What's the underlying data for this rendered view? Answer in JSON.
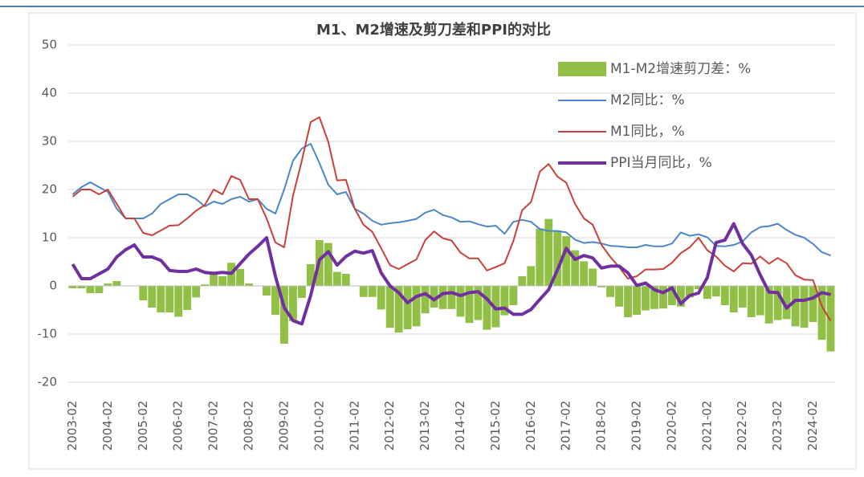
{
  "chart_data": {
    "type": "combo",
    "title": "M1、M2增速及剪刀差和PPI的对比",
    "categories": [
      "2003-02",
      null,
      null,
      null,
      "2004-02",
      null,
      null,
      null,
      "2005-02",
      null,
      null,
      null,
      "2006-02",
      null,
      null,
      null,
      "2007-02",
      null,
      null,
      null,
      "2008-02",
      null,
      null,
      null,
      "2009-02",
      null,
      null,
      null,
      "2010-02",
      null,
      null,
      null,
      "2011-02",
      null,
      null,
      null,
      "2012-02",
      null,
      null,
      null,
      "2013-02",
      null,
      null,
      null,
      "2014-02",
      null,
      null,
      null,
      "2015-02",
      null,
      null,
      null,
      "2016-02",
      null,
      null,
      null,
      "2017-02",
      null,
      null,
      null,
      "2018-02",
      null,
      null,
      null,
      "2019-02",
      null,
      null,
      null,
      "2020-02",
      null,
      null,
      null,
      "2021-02",
      null,
      null,
      null,
      "2022-02",
      null,
      null,
      null,
      "2023-02",
      null,
      null,
      null,
      "2024-02",
      null,
      null
    ],
    "ylim": [
      -20,
      50
    ],
    "yticks": [
      -20,
      -10,
      0,
      10,
      20,
      30,
      40,
      50
    ],
    "grid": true,
    "series": [
      {
        "name": "M1-M2增速剪刀差：%",
        "type": "bar",
        "color": "#92c047",
        "values": [
          -0.5,
          -0.5,
          -1.5,
          -1.5,
          0.5,
          1,
          0,
          0,
          -3,
          -4.5,
          -5.5,
          -5.5,
          -6.4,
          -5,
          -2.4,
          0.3,
          2.5,
          2,
          4.8,
          3.5,
          0.5,
          0,
          -2,
          -6,
          -12,
          -7.3,
          -2.5,
          4.5,
          9.5,
          8.9,
          2.9,
          2.5,
          0,
          -2.3,
          -2.3,
          -4.9,
          -8.7,
          -9.7,
          -9,
          -8.4,
          -5.7,
          -4.5,
          -4.8,
          -4.8,
          -6.4,
          -7.7,
          -7.1,
          -9.1,
          -8.6,
          -6.1,
          -4,
          2,
          4.1,
          11.9,
          13.9,
          11.3,
          10.3,
          7.4,
          5.1,
          3.6,
          -0.3,
          -2.3,
          -4.3,
          -6.5,
          -6,
          -5.1,
          -4.8,
          -4.7,
          -4,
          -4.3,
          -2.4,
          -0.7,
          -2.7,
          -2.2,
          -4,
          -5.5,
          -4.5,
          -6.5,
          -6.1,
          -7.8,
          -7.1,
          -6.9,
          -8.4,
          -8.7,
          -7.5,
          -11.2,
          -13.6
        ]
      },
      {
        "name": "M2同比：%",
        "type": "line",
        "color": "#4a86c8",
        "width": 2,
        "values": [
          19,
          20.5,
          21.5,
          20.5,
          19.5,
          16,
          14,
          14,
          14,
          15,
          17,
          18,
          19,
          19,
          18,
          16.5,
          17.5,
          17,
          18,
          18.5,
          17.5,
          18,
          16,
          15,
          20,
          26,
          28.5,
          29.5,
          25.5,
          21,
          19,
          19.5,
          16,
          15,
          13.5,
          12.7,
          13,
          13.2,
          13.5,
          13.9,
          15.2,
          15.8,
          14.7,
          14.2,
          13.3,
          13.4,
          12.8,
          12.3,
          12.5,
          10.8,
          13.3,
          13.7,
          13.3,
          11.8,
          11.4,
          11.4,
          11.1,
          9.6,
          8.9,
          9.1,
          8.8,
          8.3,
          8.2,
          8,
          8,
          8.5,
          8.2,
          8.2,
          8.8,
          11.1,
          10.4,
          10.7,
          10.1,
          8.3,
          8.2,
          8.5,
          9.2,
          11.1,
          12.2,
          12.4,
          12.9,
          11.6,
          10.6,
          10,
          8.7,
          7,
          6.3
        ]
      },
      {
        "name": "M1同比，%",
        "type": "line",
        "color": "#c9403a",
        "width": 2,
        "values": [
          18.5,
          20,
          20,
          19,
          20,
          17,
          14,
          14,
          11,
          10.5,
          11.5,
          12.5,
          12.6,
          14,
          15.6,
          16.8,
          20,
          19,
          22.8,
          22,
          18,
          18,
          14,
          9,
          8,
          18.7,
          26,
          34,
          35,
          29.9,
          21.9,
          22,
          16,
          12.7,
          11.2,
          7.8,
          4.3,
          3.5,
          4.5,
          5.5,
          9.5,
          11.3,
          9.9,
          9.4,
          6.9,
          5.7,
          5.7,
          3.2,
          3.9,
          4.7,
          9.3,
          15.7,
          17.4,
          23.7,
          25.3,
          22.7,
          21.4,
          17,
          14,
          12.7,
          8.5,
          6,
          3.9,
          1.5,
          2,
          3.4,
          3.4,
          3.5,
          4.8,
          6.8,
          8,
          10,
          7.4,
          6.1,
          4.2,
          3,
          4.7,
          4.6,
          6.1,
          4.6,
          5.8,
          4.7,
          2.2,
          1.3,
          1.2,
          -4.2,
          -7.3
        ]
      },
      {
        "name": "PPI当月同比，%",
        "type": "line",
        "color": "#7030a0",
        "width": 4,
        "values": [
          4.5,
          1.5,
          1.5,
          2.5,
          3.5,
          6,
          7.5,
          8.5,
          6,
          6,
          5.3,
          3.2,
          3,
          3,
          3.5,
          2.8,
          2.6,
          2.8,
          2.6,
          4.6,
          6.6,
          8.2,
          10,
          2,
          -4.5,
          -7.2,
          -7.9,
          -2,
          5.4,
          7.1,
          4.3,
          6.1,
          7.2,
          6.8,
          7.3,
          2.7,
          0,
          -1.4,
          -3.5,
          -2.2,
          -1.6,
          -2.9,
          -1.6,
          -1.4,
          -2,
          -1.4,
          -1.2,
          -2.7,
          -4.8,
          -4.6,
          -5.9,
          -5.9,
          -4.9,
          -2.8,
          -0.8,
          3.3,
          7.8,
          5.5,
          6.3,
          5.8,
          3.7,
          4.1,
          4.1,
          2.7,
          0.1,
          0.6,
          -0.8,
          -1.4,
          -0.4,
          -3.7,
          -2,
          -1.5,
          1.7,
          9,
          9.5,
          12.9,
          8.8,
          6.4,
          2.3,
          -1.3,
          -1.4,
          -4.6,
          -3,
          -3,
          -2.5,
          -1.4,
          -1.8
        ]
      }
    ]
  }
}
